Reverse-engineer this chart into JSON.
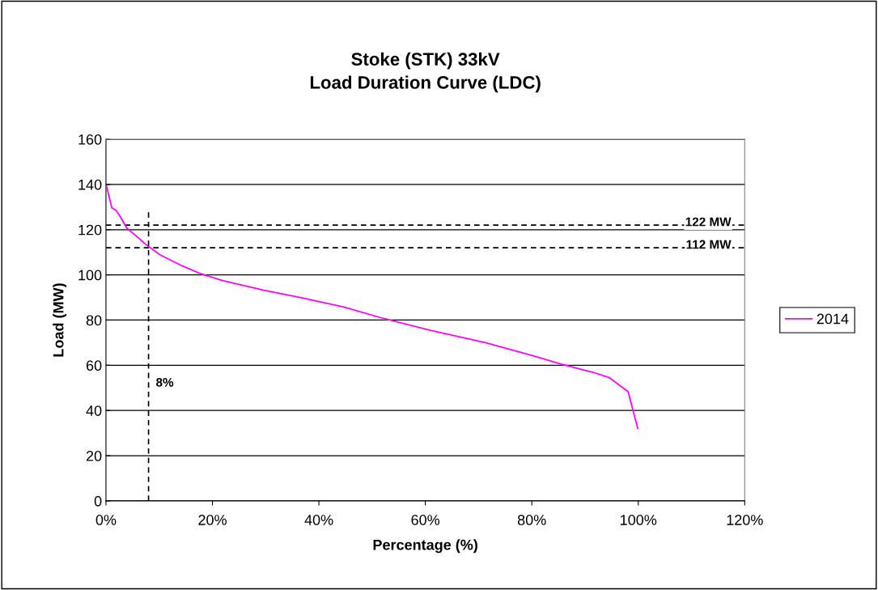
{
  "chart_data": {
    "type": "line",
    "title": "Stoke (STK) 33kV\nLoad Duration Curve (LDC)",
    "xlabel": "Percentage (%)",
    "ylabel": "Load (MW)",
    "x": [
      0.1,
      1.1,
      1.9,
      2.6,
      3.9,
      5.7,
      7.4,
      10.2,
      14.3,
      17.8,
      21.9,
      29.5,
      37.1,
      44.7,
      52.0,
      61.1,
      71.3,
      80.4,
      85.5,
      91.5,
      94.6,
      96.6,
      98.1,
      99.9
    ],
    "series": [
      {
        "name": "2014",
        "color": "#ff00ff",
        "values": [
          139.2,
          129.7,
          128.5,
          126.1,
          120.7,
          117.2,
          113.6,
          108.8,
          104.0,
          100.5,
          97.5,
          93.3,
          89.7,
          85.8,
          80.8,
          75.4,
          70.0,
          64.1,
          60.5,
          56.9,
          54.5,
          50.9,
          48.3,
          32.1
        ]
      },
      {
        "type": "line",
        "color": "#000000",
        "line_style": "dashed",
        "x": [
          8,
          8
        ],
        "values": [
          0,
          128
        ]
      }
    ],
    "ref_lines": [
      {
        "axis": "y",
        "value": 122,
        "label": "122 MW",
        "color": "#000000",
        "line_style": "dashed"
      },
      {
        "axis": "y",
        "value": 112,
        "label": "112 MW",
        "color": "#000000",
        "line_style": "dashed"
      }
    ],
    "annotations": [
      "8%"
    ],
    "xlim": [
      0,
      120
    ],
    "xticks": [
      {
        "value": 0,
        "label": "0%"
      },
      {
        "value": 20,
        "label": "20%"
      },
      {
        "value": 40,
        "label": "40%"
      },
      {
        "value": 60,
        "label": "60%"
      },
      {
        "value": 80,
        "label": "80%"
      },
      {
        "value": 100,
        "label": "100%"
      },
      {
        "value": 120,
        "label": "120%"
      }
    ],
    "ylim": [
      0,
      160
    ],
    "yticks": [
      0,
      20,
      40,
      60,
      80,
      100,
      120,
      140,
      160
    ],
    "grid": "y",
    "legend": "right",
    "marker": "none",
    "line_style": "solid"
  }
}
